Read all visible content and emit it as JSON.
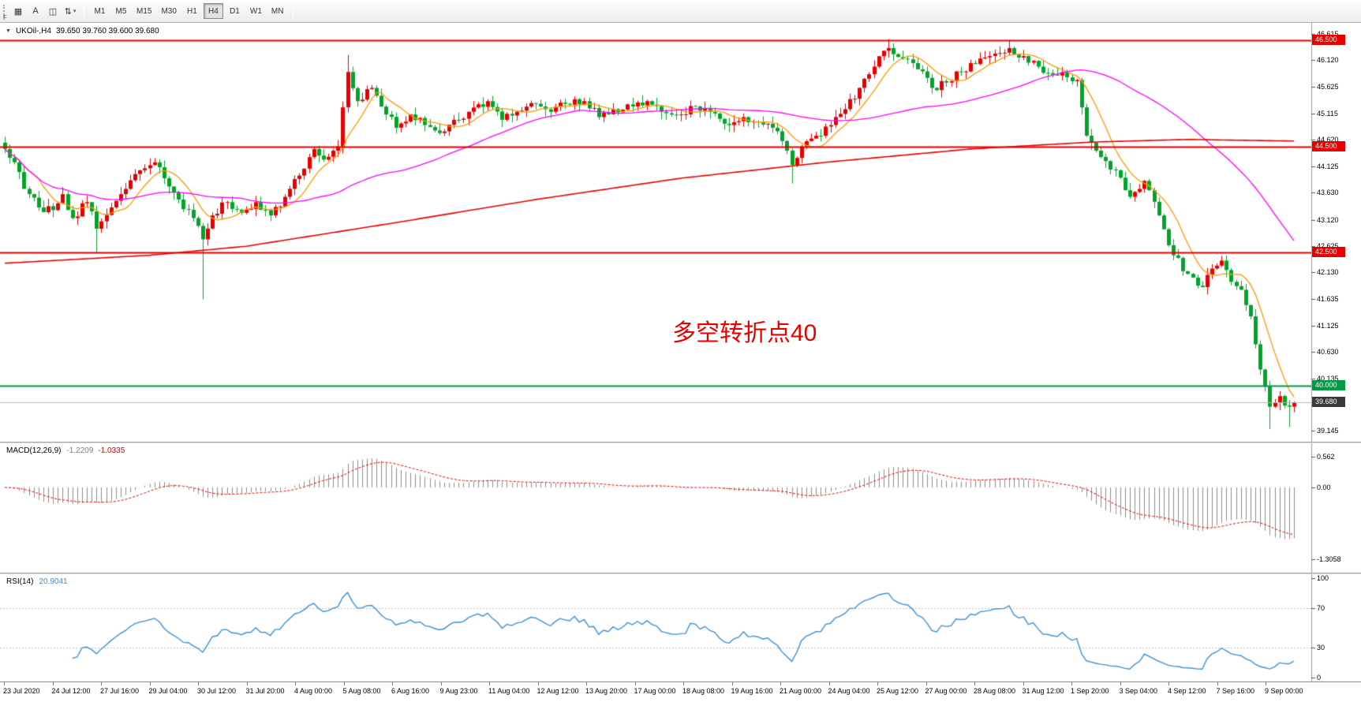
{
  "toolbar": {
    "dock_label": "F",
    "icon_buttons": [
      {
        "name": "chart-list-icon",
        "glyph": "▦"
      },
      {
        "name": "text-tool-icon",
        "glyph": "A"
      },
      {
        "name": "template-box-icon",
        "glyph": "◫"
      },
      {
        "name": "indicators-arrows-icon",
        "glyph": "⇅",
        "caret": "▾"
      }
    ],
    "timeframes": [
      "M1",
      "M5",
      "M15",
      "M30",
      "H1",
      "H4",
      "D1",
      "W1",
      "MN"
    ],
    "active_timeframe": "H4"
  },
  "chart": {
    "dropdown_glyph": "▼",
    "symbol_text": "UKOil-,H4",
    "ohlc_text": "39.650 39.760 39.600 39.680",
    "annotation": "多空转折点40"
  },
  "chart_data": {
    "type": "candlestick",
    "symbol": "UKOil-",
    "timeframe": "H4",
    "ohlc_display": {
      "open": "39.650",
      "high": "39.760",
      "low": "39.600",
      "close": "39.680"
    },
    "bar_count": 268,
    "noise_seed": 7,
    "price_axis": {
      "min": 39.06,
      "max": 46.72,
      "ticks": [
        46.615,
        46.12,
        45.625,
        45.115,
        44.62,
        44.125,
        43.63,
        43.12,
        42.625,
        42.13,
        41.635,
        41.125,
        40.63,
        40.135,
        39.645,
        39.145
      ],
      "badges": [
        {
          "label": "46.500",
          "price": 46.5,
          "bg": "#e60000"
        },
        {
          "label": "44.500",
          "price": 44.5,
          "bg": "#e60000"
        },
        {
          "label": "42.500",
          "price": 42.5,
          "bg": "#e60000"
        },
        {
          "label": "40.000",
          "price": 40.0,
          "bg": "#009a44"
        },
        {
          "label": "39.680",
          "price": 39.68,
          "bg": "#3a3a3a"
        }
      ]
    },
    "hlines": [
      {
        "price": 46.5,
        "color": "#e60000",
        "width": 2
      },
      {
        "price": 44.5,
        "color": "#e60000",
        "width": 2
      },
      {
        "price": 42.5,
        "color": "#e60000",
        "width": 2
      },
      {
        "price": 40.0,
        "color": "#009a44",
        "width": 2
      },
      {
        "price": 39.68,
        "color": "#b4b4b4",
        "width": 1
      }
    ],
    "colors": {
      "candle_up": "#e60000",
      "candle_down": "#00a42a",
      "bg": "#ffffff",
      "axis_line": "#9a9a9a"
    },
    "close_anchors": [
      [
        0,
        44.45
      ],
      [
        2,
        44.2
      ],
      [
        4,
        43.7
      ],
      [
        7,
        43.35
      ],
      [
        10,
        43.3
      ],
      [
        12,
        43.6
      ],
      [
        14,
        43.15
      ],
      [
        17,
        43.45
      ],
      [
        19,
        42.95
      ],
      [
        22,
        43.35
      ],
      [
        25,
        43.7
      ],
      [
        28,
        44.05
      ],
      [
        31,
        44.2
      ],
      [
        33,
        43.9
      ],
      [
        36,
        43.5
      ],
      [
        39,
        43.15
      ],
      [
        41,
        42.75
      ],
      [
        43,
        43.2
      ],
      [
        46,
        43.45
      ],
      [
        49,
        43.25
      ],
      [
        52,
        43.45
      ],
      [
        55,
        43.2
      ],
      [
        58,
        43.55
      ],
      [
        61,
        43.95
      ],
      [
        64,
        44.45
      ],
      [
        66,
        44.25
      ],
      [
        69,
        44.5
      ],
      [
        71,
        45.9
      ],
      [
        73,
        45.35
      ],
      [
        76,
        45.6
      ],
      [
        79,
        45.1
      ],
      [
        81,
        44.85
      ],
      [
        84,
        45.1
      ],
      [
        87,
        44.9
      ],
      [
        90,
        44.75
      ],
      [
        93,
        45.0
      ],
      [
        96,
        45.15
      ],
      [
        100,
        45.35
      ],
      [
        103,
        45.0
      ],
      [
        106,
        45.15
      ],
      [
        110,
        45.3
      ],
      [
        113,
        45.15
      ],
      [
        116,
        45.3
      ],
      [
        120,
        45.35
      ],
      [
        123,
        45.05
      ],
      [
        126,
        45.2
      ],
      [
        130,
        45.25
      ],
      [
        133,
        45.35
      ],
      [
        136,
        45.15
      ],
      [
        140,
        45.1
      ],
      [
        143,
        45.25
      ],
      [
        146,
        45.15
      ],
      [
        150,
        44.9
      ],
      [
        153,
        45.05
      ],
      [
        156,
        44.95
      ],
      [
        159,
        44.85
      ],
      [
        161,
        44.6
      ],
      [
        163,
        44.15
      ],
      [
        165,
        44.5
      ],
      [
        168,
        44.7
      ],
      [
        171,
        44.9
      ],
      [
        174,
        45.2
      ],
      [
        177,
        45.6
      ],
      [
        180,
        46.0
      ],
      [
        183,
        46.35
      ],
      [
        186,
        46.15
      ],
      [
        189,
        45.95
      ],
      [
        192,
        45.6
      ],
      [
        195,
        45.7
      ],
      [
        198,
        45.9
      ],
      [
        201,
        46.05
      ],
      [
        204,
        46.2
      ],
      [
        208,
        46.35
      ],
      [
        211,
        46.2
      ],
      [
        214,
        46.0
      ],
      [
        217,
        45.85
      ],
      [
        220,
        45.8
      ],
      [
        222,
        45.75
      ],
      [
        224,
        44.7
      ],
      [
        227,
        44.3
      ],
      [
        230,
        44.05
      ],
      [
        233,
        43.55
      ],
      [
        236,
        43.85
      ],
      [
        239,
        43.2
      ],
      [
        242,
        42.45
      ],
      [
        245,
        42.1
      ],
      [
        248,
        41.85
      ],
      [
        250,
        42.2
      ],
      [
        252,
        42.35
      ],
      [
        254,
        41.95
      ],
      [
        256,
        41.8
      ],
      [
        258,
        41.3
      ],
      [
        260,
        40.3
      ],
      [
        262,
        39.6
      ],
      [
        264,
        39.8
      ],
      [
        266,
        39.6
      ],
      [
        267,
        39.68
      ]
    ],
    "wick_overrides": [
      [
        19,
        "l",
        42.5
      ],
      [
        41,
        "l",
        41.62
      ],
      [
        71,
        "h",
        46.22
      ],
      [
        163,
        "l",
        43.8
      ],
      [
        183,
        "h",
        46.52
      ],
      [
        208,
        "h",
        46.5
      ],
      [
        262,
        "l",
        39.18
      ],
      [
        266,
        "l",
        39.22
      ]
    ],
    "ma": {
      "fast": {
        "period": 8,
        "color": "#ff9900"
      },
      "mid": {
        "period": 50,
        "color": "#ff00ff"
      },
      "slow": {
        "color": "#e60000",
        "anchors": [
          [
            0,
            42.3
          ],
          [
            30,
            42.45
          ],
          [
            50,
            42.62
          ],
          [
            80,
            43.05
          ],
          [
            110,
            43.5
          ],
          [
            140,
            43.9
          ],
          [
            170,
            44.2
          ],
          [
            200,
            44.45
          ],
          [
            225,
            44.58
          ],
          [
            245,
            44.63
          ],
          [
            267,
            44.6
          ]
        ]
      }
    },
    "macd": {
      "label": "MACD(12,26,9)",
      "value_main": "-1.2209",
      "value_signal": "-1.0335",
      "fast": 12,
      "slow": 26,
      "signal": 9,
      "hist_color": "#8c8c8c",
      "signal_color": "#e60000",
      "axis": {
        "min": -1.47,
        "max": 0.72,
        "ticks": [
          {
            "v": 0.562,
            "label": "0.562"
          },
          {
            "v": 0,
            "label": "0.00"
          },
          {
            "v": -1.3058,
            "label": "-1.3058"
          }
        ]
      }
    },
    "rsi": {
      "label": "RSI(14)",
      "value": "20.9041",
      "period": 14,
      "line_color": "#3e8ed0",
      "levels": [
        70,
        30
      ],
      "axis_ticks": [
        {
          "v": 100,
          "label": "100"
        },
        {
          "v": 70,
          "label": "70"
        },
        {
          "v": 30,
          "label": "30"
        },
        {
          "v": 0,
          "label": "0"
        }
      ]
    },
    "time_axis": [
      "23 Jul 2020",
      "24 Jul 12:00",
      "27 Jul 16:00",
      "29 Jul 04:00",
      "30 Jul 12:00",
      "31 Jul 20:00",
      "4 Aug 00:00",
      "5 Aug 08:00",
      "6 Aug 16:00",
      "9 Aug 23:00",
      "11 Aug 04:00",
      "12 Aug 12:00",
      "13 Aug 20:00",
      "17 Aug 00:00",
      "18 Aug 08:00",
      "19 Aug 16:00",
      "21 Aug 00:00",
      "24 Aug 04:00",
      "25 Aug 12:00",
      "27 Aug 00:00",
      "28 Aug 08:00",
      "31 Aug 12:00",
      "1 Sep 20:00",
      "3 Sep 04:00",
      "4 Sep 12:00",
      "7 Sep 16:00",
      "9 Sep 00:00"
    ]
  }
}
